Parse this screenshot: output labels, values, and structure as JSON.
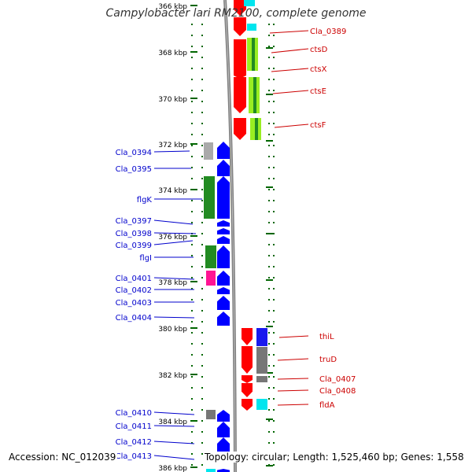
{
  "title": "Campylobacter lari RM2100, complete genome",
  "footer": {
    "accession": "Accession: NC_012039",
    "summary": "Topology: circular; Length: 1,525,460 bp; Genes: 1,558"
  },
  "ruler_labels": [
    "366 kbp",
    "368 kbp",
    "370 kbp",
    "372 kbp",
    "374 kbp",
    "376 kbp",
    "378 kbp",
    "380 kbp",
    "382 kbp",
    "384 kbp",
    "386 kbp"
  ],
  "left_genes": [
    {
      "label": "Cla_0394",
      "color": "#0000cc"
    },
    {
      "label": "Cla_0395",
      "color": "#0000cc"
    },
    {
      "label": "flgK",
      "color": "#0000cc"
    },
    {
      "label": "Cla_0397",
      "color": "#0000cc"
    },
    {
      "label": "Cla_0398",
      "color": "#0000cc"
    },
    {
      "label": "Cla_0399",
      "color": "#0000cc"
    },
    {
      "label": "flgI",
      "color": "#0000cc"
    },
    {
      "label": "Cla_0401",
      "color": "#0000cc"
    },
    {
      "label": "Cla_0402",
      "color": "#0000cc"
    },
    {
      "label": "Cla_0403",
      "color": "#0000cc"
    },
    {
      "label": "Cla_0404",
      "color": "#0000cc"
    },
    {
      "label": "Cla_0410",
      "color": "#0000cc"
    },
    {
      "label": "Cla_0411",
      "color": "#0000cc"
    },
    {
      "label": "Cla_0412",
      "color": "#0000cc"
    },
    {
      "label": "Cla_0413",
      "color": "#0000cc"
    }
  ],
  "right_genes": [
    {
      "label": "Cla_0389",
      "color": "#cc0000"
    },
    {
      "label": "ctsD",
      "color": "#cc0000"
    },
    {
      "label": "ctsX",
      "color": "#cc0000"
    },
    {
      "label": "ctsE",
      "color": "#cc0000"
    },
    {
      "label": "ctsF",
      "color": "#cc0000"
    },
    {
      "label": "thiL",
      "color": "#cc0000"
    },
    {
      "label": "truD",
      "color": "#cc0000"
    },
    {
      "label": "Cla_0407",
      "color": "#cc0000"
    },
    {
      "label": "Cla_0408",
      "color": "#cc0000"
    },
    {
      "label": "fldA",
      "color": "#cc0000"
    }
  ],
  "colors": {
    "forward_strand": "#0000ff",
    "reverse_strand": "#ff0000",
    "backbone": "#808080",
    "tick": "#006600",
    "cog_green": "#228b22",
    "cog_lime": "#99ee22",
    "cog_cyan": "#00e5ee",
    "cog_gray": "#777777",
    "cog_magenta": "#ff1493"
  }
}
